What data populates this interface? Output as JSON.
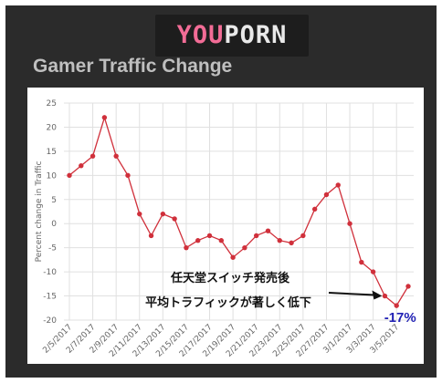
{
  "logo": {
    "part1": "YOU",
    "part2": "PORN"
  },
  "title": "Gamer Traffic Change",
  "colors": {
    "background": "#2b2b2b",
    "line": "#d0303b",
    "grid": "#e0e0e0",
    "annotation_value": "#1f1fb4",
    "logo_pink": "#f26c96"
  },
  "chart_data": {
    "type": "line",
    "ylabel": "Percent change in Traffic",
    "xlabel": "",
    "ylim": [
      -20,
      25
    ],
    "yticks": [
      25,
      20,
      15,
      10,
      5,
      0,
      -5,
      -10,
      -15,
      -20
    ],
    "grid": true,
    "x": [
      "2/5/2017",
      "2/6/2017",
      "2/7/2017",
      "2/8/2017",
      "2/9/2017",
      "2/10/2017",
      "2/11/2017",
      "2/12/2017",
      "2/13/2017",
      "2/14/2017",
      "2/15/2017",
      "2/16/2017",
      "2/17/2017",
      "2/18/2017",
      "2/19/2017",
      "2/20/2017",
      "2/21/2017",
      "2/22/2017",
      "2/23/2017",
      "2/24/2017",
      "2/25/2017",
      "2/26/2017",
      "2/27/2017",
      "2/28/2017",
      "3/1/2017",
      "3/2/2017",
      "3/3/2017",
      "3/4/2017",
      "3/5/2017",
      "3/6/2017"
    ],
    "xtick_labels": [
      "2/5/2017",
      "2/7/2017",
      "2/9/2017",
      "2/11/2017",
      "2/13/2017",
      "2/15/2017",
      "2/17/2017",
      "2/19/2017",
      "2/21/2017",
      "2/23/2017",
      "2/25/2017",
      "2/27/2017",
      "3/1/2017",
      "3/3/2017",
      "3/5/2017"
    ],
    "series": [
      {
        "values": [
          10,
          12,
          14,
          22,
          14,
          10,
          2,
          -2.5,
          2,
          1,
          -5,
          -3.5,
          -2.5,
          -3.5,
          -7,
          -5,
          -2.5,
          -1.5,
          -3.5,
          -4,
          -2.5,
          3,
          6,
          8,
          0,
          -8,
          -10,
          -15,
          -17,
          -13
        ]
      }
    ],
    "annotations": [
      {
        "text": "任天堂スイッチ発売後"
      },
      {
        "text": "平均トラフィックが著しく低下"
      },
      {
        "text": "-17%"
      }
    ]
  }
}
